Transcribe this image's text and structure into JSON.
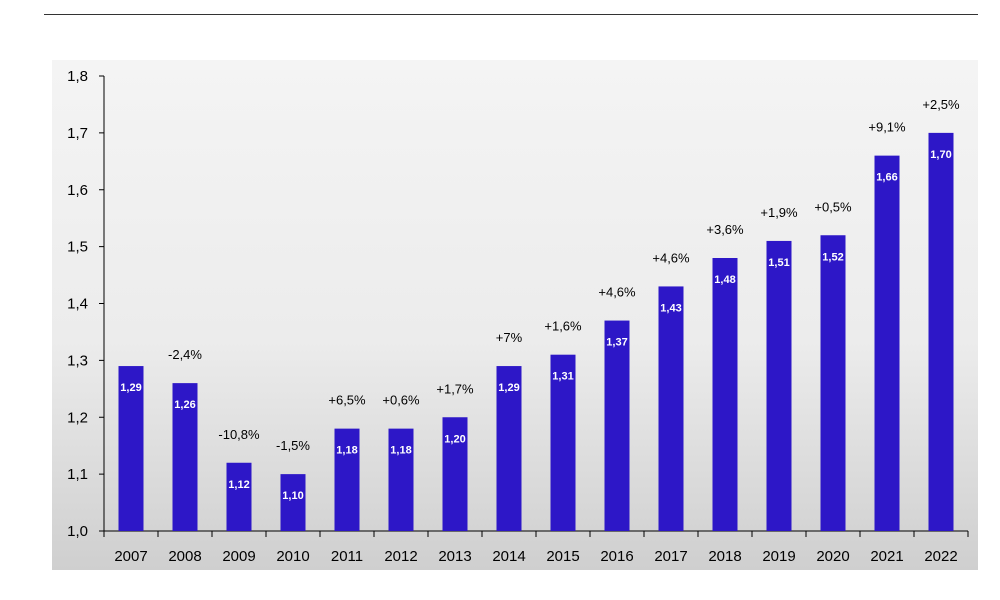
{
  "chart_data": {
    "type": "bar",
    "categories": [
      "2007",
      "2008",
      "2009",
      "2010",
      "2011",
      "2012",
      "2013",
      "2014",
      "2015",
      "2016",
      "2017",
      "2018",
      "2019",
      "2020",
      "2021",
      "2022"
    ],
    "values": [
      1.29,
      1.26,
      1.12,
      1.1,
      1.18,
      1.18,
      1.2,
      1.29,
      1.31,
      1.37,
      1.43,
      1.48,
      1.51,
      1.52,
      1.66,
      1.7
    ],
    "value_labels": [
      "1,29",
      "1,26",
      "1,12",
      "1,10",
      "1,18",
      "1,18",
      "1,20",
      "1,29",
      "1,31",
      "1,37",
      "1,43",
      "1,48",
      "1,51",
      "1,52",
      "1,66",
      "1,70"
    ],
    "change_labels": [
      "",
      "-2,4%",
      "-10,8%",
      "-1,5%",
      "+6,5%",
      "+0,6%",
      "+1,7%",
      "+7%",
      "+1,6%",
      "+4,6%",
      "+4,6%",
      "+3,6%",
      "+1,9%",
      "+0,5%",
      "+9,1%",
      "+2,5%"
    ],
    "yticks": [
      1.0,
      1.1,
      1.2,
      1.3,
      1.4,
      1.5,
      1.6,
      1.7,
      1.8
    ],
    "ytick_labels": [
      "1,0",
      "1,1",
      "1,2",
      "1,3",
      "1,4",
      "1,5",
      "1,6",
      "1,7",
      "1,8"
    ],
    "ylim": [
      1.0,
      1.8
    ],
    "title": "",
    "xlabel": "",
    "ylabel": "",
    "grid": false,
    "bar_color": "#2d17c7",
    "plot_background": "gradient-white-to-grey"
  }
}
